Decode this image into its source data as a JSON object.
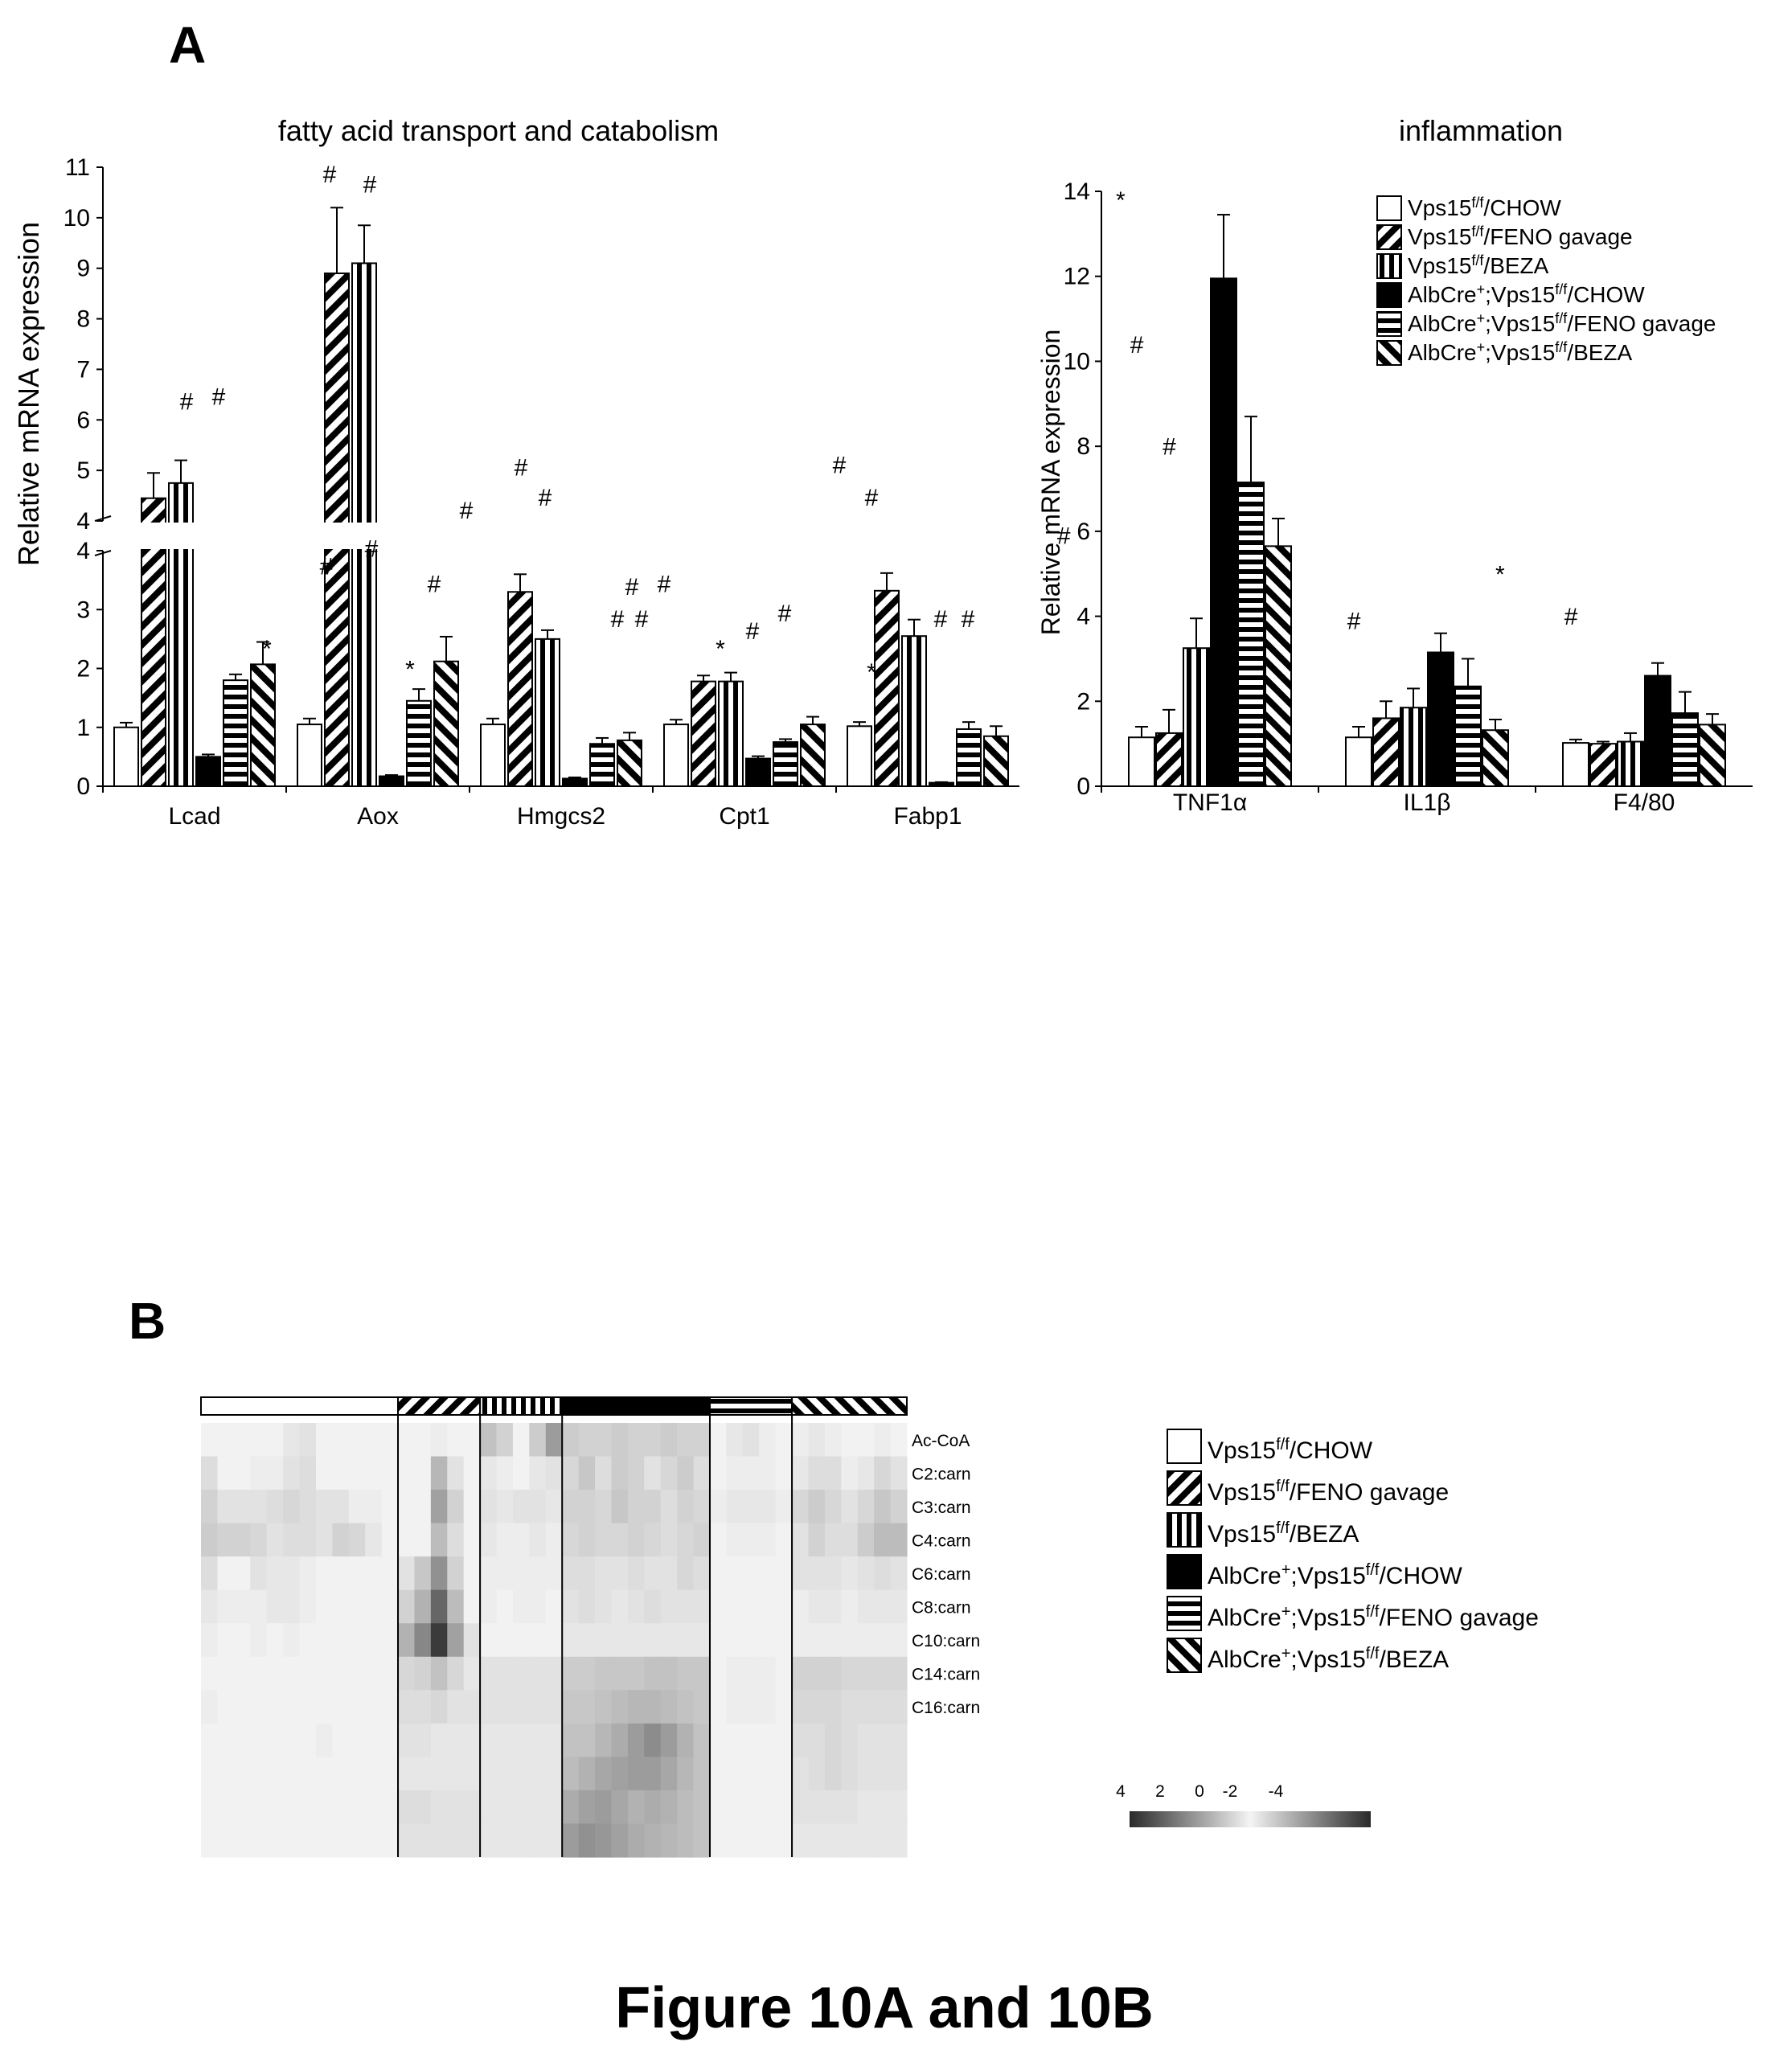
{
  "figure": {
    "label_a": "A",
    "label_b": "B",
    "caption": "Figure 10A and 10B"
  },
  "colors": {
    "ink": "#000000",
    "paper": "#ffffff",
    "heat_light": "#f2f2f2",
    "heat_dark": "#1a1a1a"
  },
  "legend": {
    "items": [
      {
        "pre": "Vps15",
        "sup": "f/f",
        "post": "/CHOW",
        "pattern": "white"
      },
      {
        "pre": "Vps15",
        "sup": "f/f",
        "post": "/FENO gavage",
        "pattern": "diag"
      },
      {
        "pre": "Vps15",
        "sup": "f/f",
        "post": "/BEZA",
        "pattern": "vert"
      },
      {
        "pre": "AlbCre",
        "sup": "+",
        "mid": ";Vps15",
        "sup2": "f/f",
        "post": "/CHOW",
        "pattern": "solid"
      },
      {
        "pre": "AlbCre",
        "sup": "+",
        "mid": ";Vps15",
        "sup2": "f/f",
        "post": "/FENO gavage",
        "pattern": "horiz"
      },
      {
        "pre": "AlbCre",
        "sup": "+",
        "mid": ";Vps15",
        "sup2": "f/f",
        "post": "/BEZA",
        "pattern": "back"
      }
    ]
  },
  "chart_data": [
    {
      "type": "bar",
      "title": "fatty acid transport and catabolism",
      "ylabel": "Relative mRNA  expression",
      "y_axis": "broken",
      "ylim_lower": [
        0,
        4
      ],
      "ylim_upper": [
        4,
        11
      ],
      "yticks_lower": [
        "0",
        "1",
        "2",
        "3",
        "4"
      ],
      "yticks_upper": [
        "4",
        "5",
        "6",
        "7",
        "8",
        "9",
        "10",
        "11"
      ],
      "categories": [
        "Lcad",
        "Aox",
        "Hmgcs2",
        "Cpt1",
        "Fabp1"
      ],
      "series": [
        {
          "name": "Vps15f/f/CHOW",
          "values": [
            1.0,
            1.05,
            1.05,
            1.05,
            1.02
          ],
          "errors": [
            0.08,
            0.1,
            0.1,
            0.08,
            0.07
          ]
        },
        {
          "name": "Vps15f/f/FENO gavage",
          "values": [
            4.45,
            8.9,
            3.3,
            1.78,
            3.32
          ],
          "errors": [
            0.5,
            1.3,
            0.3,
            0.1,
            0.3
          ]
        },
        {
          "name": "Vps15f/f/BEZA",
          "values": [
            4.75,
            9.1,
            2.5,
            1.78,
            2.55
          ],
          "errors": [
            0.45,
            0.75,
            0.15,
            0.15,
            0.28
          ]
        },
        {
          "name": "AlbCre+;Vps15f/f/CHOW",
          "values": [
            0.5,
            0.17,
            0.13,
            0.47,
            0.06
          ],
          "errors": [
            0.04,
            0.02,
            0.02,
            0.04,
            0.01
          ]
        },
        {
          "name": "AlbCre+;Vps15f/f/FENO gavage",
          "values": [
            1.8,
            1.45,
            0.72,
            0.75,
            0.97
          ],
          "errors": [
            0.1,
            0.2,
            0.1,
            0.05,
            0.12
          ]
        },
        {
          "name": "AlbCre+;Vps15f/f/BEZA",
          "values": [
            2.07,
            2.12,
            0.78,
            1.05,
            0.85
          ],
          "errors": [
            0.38,
            0.42,
            0.13,
            0.13,
            0.17
          ]
        }
      ],
      "annotations": [
        {
          "text": "#",
          "x_cat": 0,
          "offset": -0.05,
          "y": 6.2
        },
        {
          "text": "#",
          "x_cat": 0,
          "offset": 0.15,
          "y": 6.3
        },
        {
          "text": "*",
          "x_cat": 0,
          "offset": 0.45,
          "y": 2.2
        },
        {
          "text": "#",
          "x_cat": 0,
          "offset": 0.82,
          "y": 3.6
        },
        {
          "text": "#",
          "x_cat": 0,
          "offset": 1.1,
          "y": 3.9
        },
        {
          "text": "#",
          "x_cat": 1,
          "offset": -0.3,
          "y": 10.7
        },
        {
          "text": "#",
          "x_cat": 1,
          "offset": -0.05,
          "y": 10.5
        },
        {
          "text": "#",
          "x_cat": 1,
          "offset": 0.35,
          "y": 3.3
        },
        {
          "text": "#",
          "x_cat": 1,
          "offset": 0.55,
          "y": 4.05
        },
        {
          "text": "*",
          "x_cat": 1,
          "offset": 0.2,
          "y": 1.85
        },
        {
          "text": "#",
          "x_cat": 2,
          "offset": -0.25,
          "y": 4.9
        },
        {
          "text": "#",
          "x_cat": 2,
          "offset": -0.1,
          "y": 4.3
        },
        {
          "text": "#",
          "x_cat": 2,
          "offset": 0.35,
          "y": 2.7
        },
        {
          "text": "#",
          "x_cat": 2,
          "offset": 0.5,
          "y": 2.7
        },
        {
          "text": "#",
          "x_cat": 3,
          "offset": -0.7,
          "y": 3.25
        },
        {
          "text": "#",
          "x_cat": 3,
          "offset": -0.5,
          "y": 3.3
        },
        {
          "text": "*",
          "x_cat": 3,
          "offset": -0.15,
          "y": 2.2
        },
        {
          "text": "#",
          "x_cat": 3,
          "offset": 0.05,
          "y": 2.5
        },
        {
          "text": "#",
          "x_cat": 3,
          "offset": 0.25,
          "y": 2.8
        },
        {
          "text": "#",
          "x_cat": 4,
          "offset": -0.55,
          "y": 4.95
        },
        {
          "text": "#",
          "x_cat": 4,
          "offset": -0.35,
          "y": 4.3
        },
        {
          "text": "*",
          "x_cat": 4,
          "offset": -0.35,
          "y": 1.8
        },
        {
          "text": "#",
          "x_cat": 4,
          "offset": 0.08,
          "y": 2.7
        },
        {
          "text": "#",
          "x_cat": 4,
          "offset": 0.25,
          "y": 2.7
        }
      ]
    },
    {
      "type": "bar",
      "title": "inflammation",
      "ylabel": "Relative mRNA  expression",
      "ylim": [
        0,
        14
      ],
      "yticks": [
        "0",
        "2",
        "4",
        "6",
        "8",
        "10",
        "12",
        "14"
      ],
      "categories": [
        "TNF1α",
        "IL1β",
        "F4/80"
      ],
      "series": [
        {
          "name": "Vps15f/f/CHOW",
          "values": [
            1.15,
            1.15,
            1.02
          ],
          "errors": [
            0.25,
            0.25,
            0.08
          ]
        },
        {
          "name": "Vps15f/f/FENO gavage",
          "values": [
            1.25,
            1.6,
            1.0
          ],
          "errors": [
            0.55,
            0.4,
            0.05
          ]
        },
        {
          "name": "Vps15f/f/BEZA",
          "values": [
            3.25,
            1.85,
            1.05
          ],
          "errors": [
            0.7,
            0.45,
            0.2
          ]
        },
        {
          "name": "AlbCre+;Vps15f/f/CHOW",
          "values": [
            11.95,
            3.15,
            2.6
          ],
          "errors": [
            1.5,
            0.45,
            0.3
          ]
        },
        {
          "name": "AlbCre+;Vps15f/f/FENO gavage",
          "values": [
            7.15,
            2.35,
            1.72
          ],
          "errors": [
            1.55,
            0.65,
            0.5
          ]
        },
        {
          "name": "AlbCre+;Vps15f/f/BEZA",
          "values": [
            5.65,
            1.32,
            1.45
          ],
          "errors": [
            0.65,
            0.25,
            0.25
          ]
        }
      ],
      "annotations": [
        {
          "text": "*",
          "x_cat": 0,
          "offset": -0.55,
          "y": 13.6
        },
        {
          "text": "#",
          "x_cat": 0,
          "offset": -0.45,
          "y": 10.2
        },
        {
          "text": "#",
          "x_cat": 0,
          "offset": -0.25,
          "y": 7.8
        },
        {
          "text": "#",
          "x_cat": 0,
          "offset": -0.9,
          "y": 5.7
        },
        {
          "text": "#",
          "x_cat": 1,
          "offset": -0.45,
          "y": 3.7
        },
        {
          "text": "*",
          "x_cat": 1,
          "offset": 0.45,
          "y": 4.8
        },
        {
          "text": "#",
          "x_cat": 2,
          "offset": -0.45,
          "y": 3.8
        }
      ]
    },
    {
      "type": "heatmap",
      "row_labels": [
        "Ac-CoA",
        "C2:carn",
        "C3:carn",
        "C4:carn",
        "C6:carn",
        "C8:carn",
        "C10:carn",
        "C14:carn",
        "C16:carn"
      ],
      "n_rows": 13,
      "group_patterns": [
        "white",
        "diag",
        "vert",
        "solid",
        "horiz",
        "back"
      ],
      "group_columns": [
        12,
        5,
        5,
        9,
        5,
        7
      ],
      "colorbar_ticks": [
        "4",
        "2",
        "0",
        "-2",
        "-4"
      ],
      "colorbar_range": [
        -4,
        4
      ],
      "values": [
        [
          0,
          0,
          0,
          0,
          0,
          0.2,
          0.3,
          0,
          0,
          0,
          0,
          0,
          0,
          0,
          0.1,
          0,
          0,
          0.9,
          0.6,
          0,
          0.7,
          1.6,
          0.7,
          0.6,
          0.6,
          0.7,
          0.6,
          0.6,
          0.7,
          0.6,
          0.6,
          0,
          0.2,
          0.3,
          0.1,
          0,
          0.1,
          0.2,
          0.1,
          0,
          0,
          0.1,
          0
        ],
        [
          0.4,
          0,
          0,
          0.1,
          0.1,
          0.3,
          0.4,
          0,
          0,
          0,
          0,
          0,
          0,
          0,
          1.1,
          0.3,
          0,
          0.2,
          0.1,
          0,
          0.2,
          0.3,
          0.5,
          0.8,
          0.4,
          0.7,
          0.6,
          0.3,
          0.5,
          0.7,
          0.4,
          0,
          0.1,
          0.1,
          0.1,
          0,
          0.2,
          0.4,
          0.4,
          0.1,
          0.2,
          0.5,
          0.3
        ],
        [
          0.6,
          0.3,
          0.3,
          0.3,
          0.4,
          0.5,
          0.4,
          0.3,
          0.3,
          0.1,
          0.1,
          0,
          0,
          0,
          1.5,
          0.6,
          0,
          0.3,
          0.2,
          0.3,
          0.3,
          0.2,
          0.6,
          0.6,
          0.5,
          0.8,
          0.6,
          0.6,
          0.4,
          0.6,
          0.5,
          0.1,
          0.2,
          0.2,
          0.2,
          0.1,
          0.5,
          0.7,
          0.5,
          0.3,
          0.5,
          0.8,
          0.6
        ],
        [
          0.7,
          0.6,
          0.6,
          0.5,
          0.3,
          0.4,
          0.4,
          0.3,
          0.6,
          0.5,
          0.2,
          0,
          0,
          0,
          1.0,
          0.4,
          0,
          0.2,
          0.1,
          0.1,
          0.2,
          0.1,
          0.5,
          0.6,
          0.5,
          0.5,
          0.6,
          0.5,
          0.4,
          0.5,
          0.6,
          0,
          0.1,
          0.1,
          0.1,
          0,
          0.3,
          0.6,
          0.4,
          0.4,
          0.7,
          1.0,
          1.0
        ],
        [
          0.4,
          0,
          0,
          0.3,
          0.2,
          0.2,
          0.1,
          0,
          0,
          0,
          0,
          0,
          0.3,
          0.8,
          1.8,
          0.6,
          0,
          0.1,
          0.1,
          0.1,
          0.1,
          0.1,
          0.4,
          0.4,
          0.3,
          0.3,
          0.4,
          0.3,
          0.3,
          0.5,
          0.4,
          0,
          0,
          0,
          0,
          0,
          0.3,
          0.3,
          0.3,
          0.2,
          0.3,
          0.4,
          0.3
        ],
        [
          0.2,
          0.1,
          0.1,
          0.1,
          0.2,
          0.2,
          0.1,
          0,
          0,
          0,
          0,
          0,
          0.6,
          1.2,
          2.6,
          1.0,
          0,
          0.1,
          0,
          0.1,
          0.1,
          0,
          0.3,
          0.4,
          0.3,
          0.2,
          0.3,
          0.4,
          0.3,
          0.3,
          0.3,
          0,
          0,
          0,
          0,
          0,
          0.1,
          0.2,
          0.2,
          0.1,
          0.2,
          0.2,
          0.2
        ],
        [
          0.1,
          0,
          0,
          0.1,
          0,
          0.1,
          0,
          0,
          0,
          0,
          0,
          0,
          1.2,
          2.0,
          3.4,
          1.5,
          0.3,
          0,
          0,
          0,
          0,
          0,
          0.2,
          0.2,
          0.2,
          0.2,
          0.2,
          0.2,
          0.2,
          0.2,
          0.2,
          0,
          0,
          0,
          0,
          0,
          0.1,
          0.1,
          0.1,
          0.1,
          0.1,
          0.1,
          0.1
        ],
        [
          0,
          0,
          0,
          0,
          0,
          0,
          0,
          0,
          0,
          0,
          0,
          0,
          0.5,
          0.6,
          0.9,
          0.5,
          0.2,
          0.3,
          0.3,
          0.3,
          0.3,
          0.3,
          0.7,
          0.7,
          0.8,
          0.8,
          0.8,
          0.9,
          0.9,
          0.8,
          0.8,
          0,
          0.1,
          0.1,
          0.1,
          0,
          0.6,
          0.6,
          0.6,
          0.5,
          0.5,
          0.5,
          0.5
        ],
        [
          0.1,
          0,
          0,
          0,
          0,
          0,
          0,
          0,
          0,
          0,
          0,
          0,
          0.4,
          0.4,
          0.5,
          0.3,
          0.3,
          0.3,
          0.3,
          0.3,
          0.3,
          0.3,
          0.8,
          0.8,
          0.9,
          1.0,
          1.1,
          1.1,
          1.0,
          0.9,
          0.8,
          0,
          0.1,
          0.1,
          0.1,
          0,
          0.5,
          0.5,
          0.5,
          0.4,
          0.4,
          0.4,
          0.4
        ],
        [
          0,
          0,
          0,
          0,
          0,
          0,
          0,
          0.1,
          0,
          0,
          0,
          0,
          0.3,
          0.3,
          0.2,
          0.2,
          0.2,
          0.2,
          0.2,
          0.2,
          0.2,
          0.2,
          0.9,
          0.9,
          1.1,
          1.3,
          1.6,
          1.9,
          1.6,
          1.2,
          0.9,
          0,
          0,
          0,
          0,
          0,
          0.4,
          0.4,
          0.5,
          0.4,
          0.3,
          0.3,
          0.3
        ],
        [
          0,
          0,
          0,
          0,
          0,
          0,
          0,
          0,
          0,
          0,
          0,
          0,
          0.2,
          0.2,
          0.2,
          0.2,
          0.2,
          0.2,
          0.2,
          0.2,
          0.2,
          0.2,
          1.0,
          1.2,
          1.4,
          1.5,
          1.6,
          1.6,
          1.4,
          1.1,
          0.9,
          0,
          0,
          0,
          0,
          0,
          0.3,
          0.4,
          0.5,
          0.4,
          0.3,
          0.3,
          0.3
        ],
        [
          0,
          0,
          0,
          0,
          0,
          0,
          0,
          0,
          0,
          0,
          0,
          0,
          0.4,
          0.4,
          0.3,
          0.3,
          0.3,
          0.2,
          0.2,
          0.2,
          0.2,
          0.2,
          1.3,
          1.5,
          1.6,
          1.4,
          1.2,
          1.3,
          1.2,
          1.0,
          0.9,
          0,
          0,
          0,
          0,
          0,
          0.3,
          0.3,
          0.3,
          0.3,
          0.2,
          0.2,
          0.2
        ],
        [
          0,
          0,
          0,
          0,
          0,
          0,
          0,
          0,
          0,
          0,
          0,
          0,
          0.3,
          0.3,
          0.3,
          0.3,
          0.3,
          0.2,
          0.2,
          0.2,
          0.2,
          0.2,
          1.6,
          1.8,
          1.7,
          1.5,
          1.3,
          1.2,
          1.1,
          1.0,
          0.9,
          0,
          0,
          0,
          0,
          0,
          0.2,
          0.2,
          0.2,
          0.2,
          0.2,
          0.2,
          0.2
        ]
      ]
    }
  ]
}
